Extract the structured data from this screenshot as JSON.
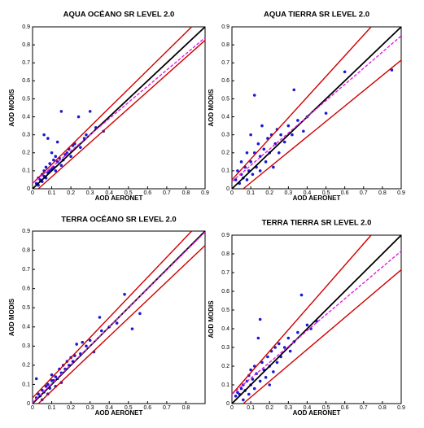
{
  "chart_data": [
    {
      "type": "scatter",
      "title": "AQUA OCÉANO SR LEVEL 2.0",
      "xlabel": "AOD AERONET",
      "ylabel": "AOD MODIS",
      "color": "#1a1ad6",
      "xlim": [
        0,
        0.9
      ],
      "ylim": [
        0,
        0.9
      ],
      "xticks": [
        0,
        0.1,
        0.2,
        0.3,
        0.4,
        0.5,
        0.6,
        0.7,
        0.8,
        0.9
      ],
      "yticks": [
        0,
        0.1,
        0.2,
        0.3,
        0.4,
        0.5,
        0.6,
        0.7,
        0.8,
        0.9
      ],
      "x": [
        0.02,
        0.03,
        0.03,
        0.04,
        0.05,
        0.05,
        0.06,
        0.06,
        0.07,
        0.07,
        0.08,
        0.08,
        0.09,
        0.09,
        0.1,
        0.1,
        0.11,
        0.11,
        0.12,
        0.12,
        0.13,
        0.13,
        0.14,
        0.15,
        0.15,
        0.16,
        0.17,
        0.18,
        0.19,
        0.2,
        0.21,
        0.22,
        0.24,
        0.25,
        0.27,
        0.28,
        0.3,
        0.33,
        0.37,
        0.06
      ],
      "y": [
        0.03,
        0.02,
        0.06,
        0.05,
        0.04,
        0.08,
        0.07,
        0.1,
        0.06,
        0.12,
        0.09,
        0.28,
        0.1,
        0.14,
        0.11,
        0.2,
        0.12,
        0.16,
        0.1,
        0.18,
        0.15,
        0.26,
        0.17,
        0.13,
        0.43,
        0.16,
        0.19,
        0.2,
        0.22,
        0.18,
        0.24,
        0.25,
        0.4,
        0.23,
        0.28,
        0.3,
        0.43,
        0.34,
        0.32,
        0.3
      ],
      "lines": [
        {
          "color": "#d00000",
          "dash": false,
          "x": [
            0,
            0.83
          ],
          "y": [
            0.03,
            0.9
          ]
        },
        {
          "color": "#d00000",
          "dash": false,
          "x": [
            0.03,
            0.9
          ],
          "y": [
            0,
            0.825
          ]
        },
        {
          "color": "#000000",
          "dash": false,
          "x": [
            0,
            0.9
          ],
          "y": [
            0,
            0.9
          ]
        },
        {
          "color": "#e020e0",
          "dash": true,
          "x": [
            0,
            0.9
          ],
          "y": [
            0.03,
            0.84
          ]
        }
      ]
    },
    {
      "type": "scatter",
      "title": "AQUA TIERRA SR LEVEL 2.0",
      "xlabel": "AOD AERONET",
      "ylabel": "AOD MODIS",
      "color": "#1a1ad6",
      "xlim": [
        0,
        0.9
      ],
      "ylim": [
        0,
        0.9
      ],
      "xticks": [
        0,
        0.1,
        0.2,
        0.3,
        0.4,
        0.5,
        0.6,
        0.7,
        0.8,
        0.9
      ],
      "yticks": [
        0,
        0.1,
        0.2,
        0.3,
        0.4,
        0.5,
        0.6,
        0.7,
        0.8,
        0.9
      ],
      "x": [
        0.02,
        0.03,
        0.04,
        0.05,
        0.05,
        0.06,
        0.07,
        0.08,
        0.08,
        0.09,
        0.1,
        0.1,
        0.11,
        0.12,
        0.12,
        0.13,
        0.14,
        0.15,
        0.15,
        0.16,
        0.17,
        0.18,
        0.19,
        0.2,
        0.21,
        0.22,
        0.23,
        0.24,
        0.25,
        0.26,
        0.28,
        0.3,
        0.32,
        0.33,
        0.35,
        0.38,
        0.4,
        0.5,
        0.6,
        0.85
      ],
      "y": [
        0.05,
        0.1,
        0.03,
        0.08,
        0.15,
        0.06,
        0.12,
        0.2,
        0.05,
        0.1,
        0.3,
        0.15,
        0.08,
        0.52,
        0.2,
        0.12,
        0.25,
        0.18,
        0.1,
        0.35,
        0.22,
        0.15,
        0.28,
        0.2,
        0.3,
        0.12,
        0.25,
        0.33,
        0.2,
        0.3,
        0.26,
        0.35,
        0.3,
        0.55,
        0.38,
        0.32,
        0.4,
        0.42,
        0.65,
        0.66
      ],
      "lines": [
        {
          "color": "#d00000",
          "dash": false,
          "x": [
            0,
            0.74
          ],
          "y": [
            0.05,
            0.9
          ]
        },
        {
          "color": "#d00000",
          "dash": false,
          "x": [
            0.06,
            0.9
          ],
          "y": [
            0,
            0.715
          ]
        },
        {
          "color": "#000000",
          "dash": false,
          "x": [
            0,
            0.9
          ],
          "y": [
            0,
            0.9
          ]
        },
        {
          "color": "#e020e0",
          "dash": true,
          "x": [
            0,
            0.9
          ],
          "y": [
            0.04,
            0.85
          ]
        }
      ]
    },
    {
      "type": "scatter",
      "title": "TERRA OCÉANO SR LEVEL 2.0",
      "xlabel": "AOD AERONET",
      "ylabel": "AOD MODIS",
      "color": "#1a1ad6",
      "xlim": [
        0,
        0.9
      ],
      "ylim": [
        0,
        0.9
      ],
      "xticks": [
        0,
        0.1,
        0.2,
        0.3,
        0.4,
        0.5,
        0.6,
        0.7,
        0.8
      ],
      "yticks": [
        0,
        0.1,
        0.2,
        0.3,
        0.4,
        0.5,
        0.6,
        0.7,
        0.8,
        0.9
      ],
      "x": [
        0.02,
        0.03,
        0.04,
        0.05,
        0.06,
        0.07,
        0.08,
        0.09,
        0.1,
        0.1,
        0.11,
        0.12,
        0.13,
        0.14,
        0.15,
        0.16,
        0.17,
        0.18,
        0.19,
        0.2,
        0.21,
        0.22,
        0.23,
        0.25,
        0.26,
        0.28,
        0.3,
        0.32,
        0.35,
        0.36,
        0.4,
        0.44,
        0.48,
        0.52,
        0.56,
        0.02,
        0.05,
        0.08,
        0.12,
        0.15
      ],
      "y": [
        0.03,
        0.05,
        0.04,
        0.07,
        0.06,
        0.09,
        0.1,
        0.08,
        0.12,
        0.15,
        0.12,
        0.14,
        0.13,
        0.18,
        0.16,
        0.2,
        0.18,
        0.22,
        0.2,
        0.24,
        0.22,
        0.25,
        0.31,
        0.26,
        0.32,
        0.3,
        0.33,
        0.27,
        0.45,
        0.38,
        0.4,
        0.42,
        0.57,
        0.39,
        0.47,
        0.13,
        0.02,
        0.05,
        0.09,
        0.11
      ],
      "lines": [
        {
          "color": "#d00000",
          "dash": false,
          "x": [
            0,
            0.83
          ],
          "y": [
            0.03,
            0.9
          ]
        },
        {
          "color": "#d00000",
          "dash": false,
          "x": [
            0.03,
            0.9
          ],
          "y": [
            0,
            0.825
          ]
        },
        {
          "color": "#000000",
          "dash": false,
          "x": [
            0,
            0.9
          ],
          "y": [
            0,
            0.9
          ]
        },
        {
          "color": "#e020e0",
          "dash": true,
          "x": [
            0,
            0.9
          ],
          "y": [
            0.005,
            0.895
          ]
        }
      ]
    },
    {
      "type": "scatter",
      "title": "TERRA TIERRA SR LEVEL 2.0",
      "xlabel": "AOD AERONET",
      "ylabel": "AOD MODIS",
      "color": "#1a1ad6",
      "xlim": [
        0,
        0.9
      ],
      "ylim": [
        0,
        0.9
      ],
      "xticks": [
        0,
        0.1,
        0.2,
        0.3,
        0.4,
        0.5,
        0.6,
        0.7,
        0.8,
        0.9
      ],
      "yticks": [
        0,
        0.1,
        0.2,
        0.3,
        0.4,
        0.5,
        0.6,
        0.7,
        0.8,
        0.9
      ],
      "x": [
        0.02,
        0.03,
        0.04,
        0.05,
        0.06,
        0.07,
        0.08,
        0.09,
        0.1,
        0.1,
        0.11,
        0.12,
        0.13,
        0.14,
        0.15,
        0.15,
        0.16,
        0.17,
        0.18,
        0.19,
        0.2,
        0.21,
        0.22,
        0.23,
        0.24,
        0.25,
        0.26,
        0.28,
        0.3,
        0.31,
        0.33,
        0.35,
        0.37,
        0.4,
        0.42,
        0.45,
        0.06,
        0.09,
        0.12,
        0.2
      ],
      "y": [
        0.04,
        0.06,
        0.05,
        0.08,
        0.1,
        0.07,
        0.12,
        0.15,
        0.1,
        0.18,
        0.13,
        0.2,
        0.16,
        0.35,
        0.45,
        0.12,
        0.22,
        0.18,
        0.14,
        0.25,
        0.2,
        0.28,
        0.17,
        0.3,
        0.22,
        0.32,
        0.25,
        0.3,
        0.35,
        0.28,
        0.33,
        0.38,
        0.58,
        0.42,
        0.4,
        0.44,
        0.02,
        0.05,
        0.08,
        0.1
      ],
      "lines": [
        {
          "color": "#d00000",
          "dash": false,
          "x": [
            0,
            0.74
          ],
          "y": [
            0.05,
            0.9
          ]
        },
        {
          "color": "#d00000",
          "dash": false,
          "x": [
            0.06,
            0.9
          ],
          "y": [
            0,
            0.715
          ]
        },
        {
          "color": "#000000",
          "dash": false,
          "x": [
            0,
            0.9
          ],
          "y": [
            0,
            0.9
          ]
        },
        {
          "color": "#e020e0",
          "dash": true,
          "x": [
            0,
            0.9
          ],
          "y": [
            0.05,
            0.815
          ]
        }
      ]
    }
  ]
}
